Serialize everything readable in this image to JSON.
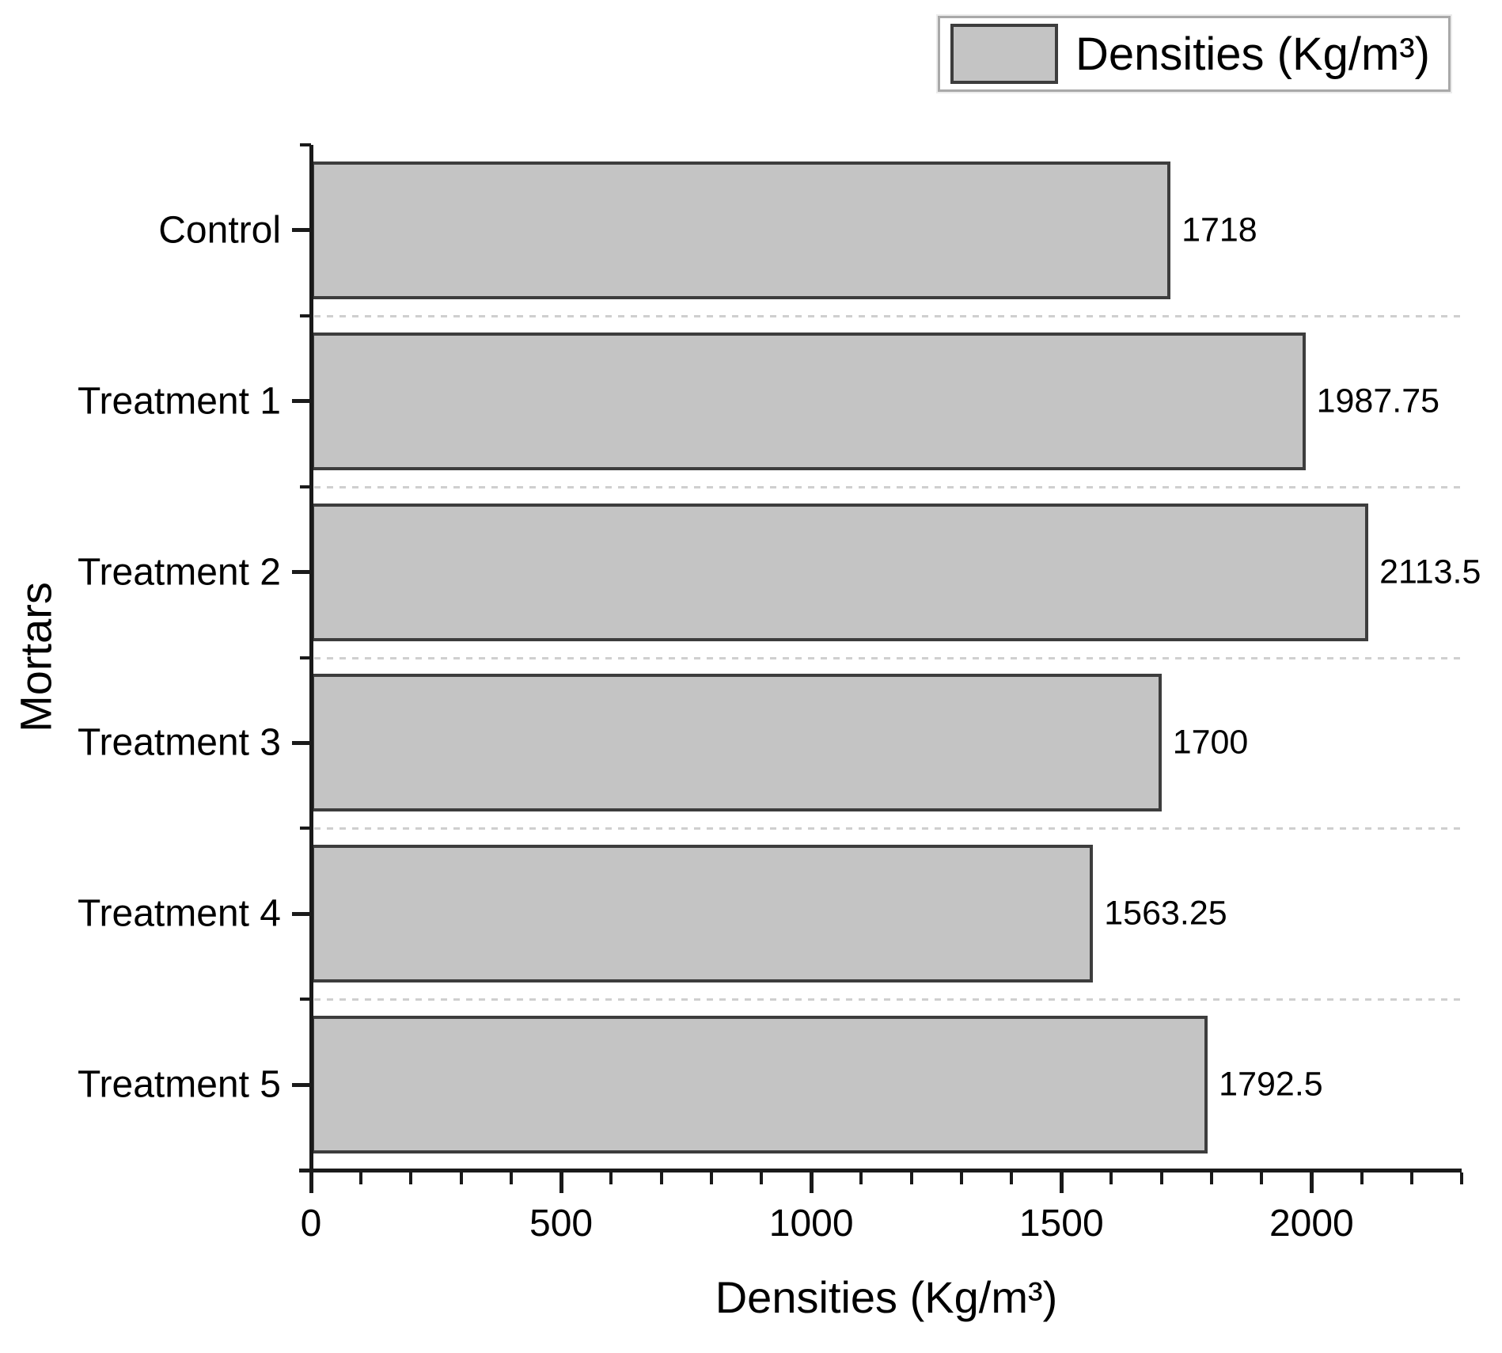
{
  "legend": {
    "label": "Densities (Kg/m³)"
  },
  "chart_data": {
    "type": "bar",
    "orientation": "horizontal",
    "categories": [
      "Control",
      "Treatment 1",
      "Treatment 2",
      "Treatment 3",
      "Treatment 4",
      "Treatment 5"
    ],
    "values": [
      1718,
      1987.75,
      2113.5,
      1700,
      1563.25,
      1792.5
    ],
    "value_labels": [
      "1718",
      "1987.75",
      "2113.5",
      "1700",
      "1563.25",
      "1792.5"
    ],
    "xlabel": "Densities (Kg/m³)",
    "ylabel": "Mortars",
    "xlim": [
      0,
      2300
    ],
    "x_major_ticks": [
      0,
      500,
      1000,
      1500,
      2000
    ],
    "x_major_tick_labels": [
      "0",
      "500",
      "1000",
      "1500",
      "2000"
    ],
    "x_minor_tick_step": 100,
    "grid": "dashed horizontal separators between categories",
    "legend_position": "top-right",
    "legend_label": "Densities (Kg/m³)",
    "bar_fill_color": "#c4c4c4",
    "bar_border_color": "#3d3d3d",
    "gridline_color": "#cfcfcf",
    "axis_color": "#1a1a1a",
    "text_color": "#000000"
  }
}
